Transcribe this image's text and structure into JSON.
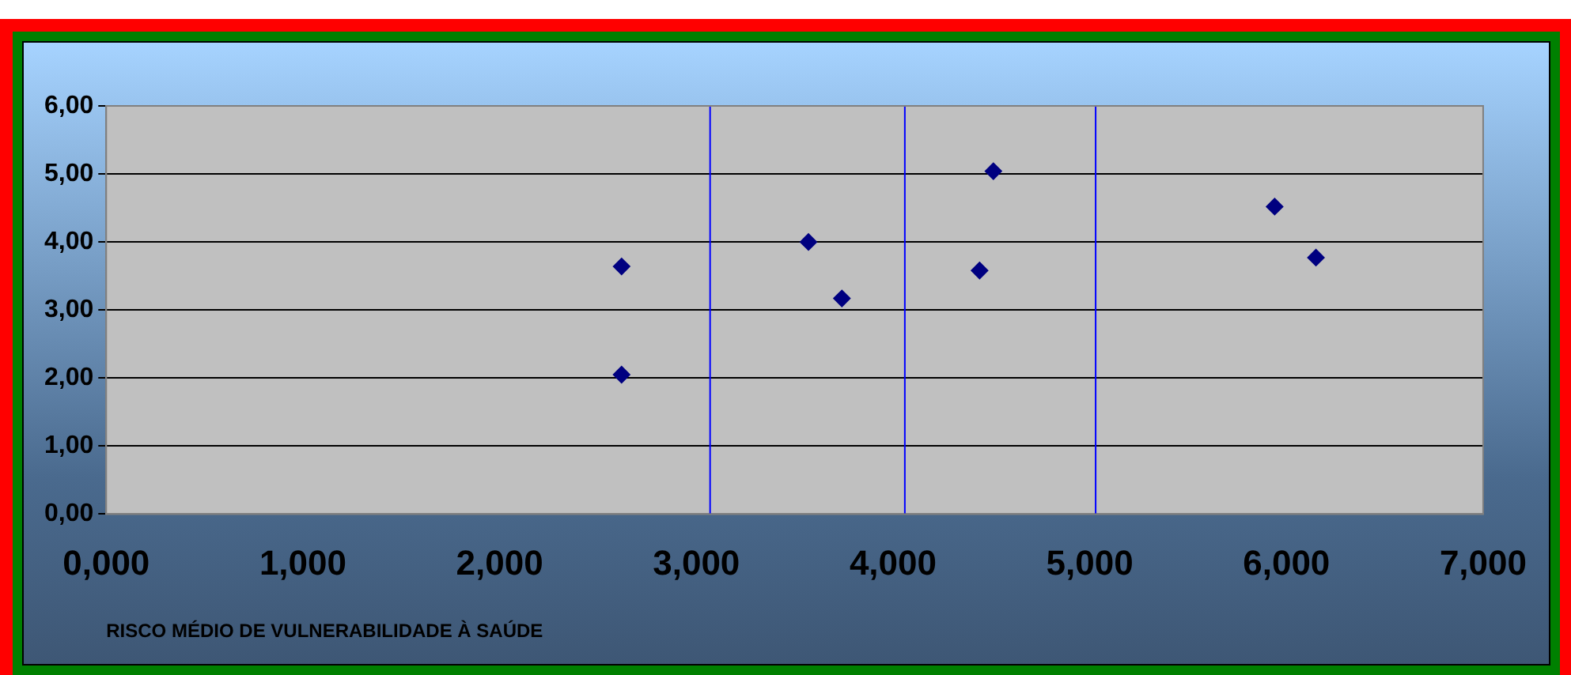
{
  "chart_data": {
    "type": "scatter",
    "xlabel": "RISCO MÉDIO DE VULNERABILIDADE À SAÚDE",
    "x": [
      2.62,
      2.62,
      3.57,
      3.74,
      4.44,
      4.51,
      5.94,
      6.15
    ],
    "values": [
      3.64,
      2.05,
      4.0,
      3.17,
      3.58,
      5.04,
      4.52,
      3.77
    ],
    "color": "#000080",
    "marker": "diamond",
    "xlim": [
      0,
      7
    ],
    "xticks": [
      {
        "value": 0,
        "label": "0,000"
      },
      {
        "value": 1,
        "label": "1,000"
      },
      {
        "value": 2,
        "label": "2,000"
      },
      {
        "value": 3,
        "label": "3,000"
      },
      {
        "value": 4,
        "label": "4,000"
      },
      {
        "value": 5,
        "label": "5,000"
      },
      {
        "value": 6,
        "label": "6,000"
      },
      {
        "value": 7,
        "label": "7,000"
      }
    ],
    "ylim": [
      0,
      6
    ],
    "yticks": [
      {
        "value": 0,
        "label": "0,00"
      },
      {
        "value": 1,
        "label": "1,00"
      },
      {
        "value": 2,
        "label": "2,00"
      },
      {
        "value": 3,
        "label": "3,00"
      },
      {
        "value": 4,
        "label": "4,00"
      },
      {
        "value": 5,
        "label": "5,00"
      },
      {
        "value": 6,
        "label": "6,00"
      }
    ],
    "grid": "y",
    "legend": false,
    "ref_lines": [
      {
        "axis": "x",
        "value": 3.07,
        "color": "#0000ff"
      },
      {
        "axis": "x",
        "value": 4.06,
        "color": "#0000ff"
      },
      {
        "axis": "x",
        "value": 5.03,
        "color": "#0000ff"
      }
    ]
  }
}
